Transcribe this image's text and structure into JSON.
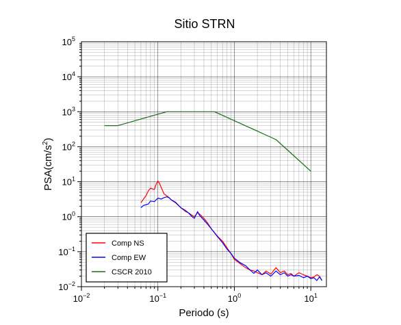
{
  "chart_data": {
    "type": "line",
    "title": "Sitio STRN",
    "xlabel": "Periodo (s)",
    "ylabel": {
      "base": "PSA(cm/s",
      "sup": "2",
      "tail": ")"
    },
    "xscale": "log",
    "yscale": "log",
    "xlim": [
      0.01,
      16
    ],
    "ylim": [
      0.01,
      100000
    ],
    "grid": true,
    "legend_position": "bottom-left",
    "x_ticks": [
      {
        "value": 0.01,
        "base": "10",
        "exp": "−2"
      },
      {
        "value": 0.1,
        "base": "10",
        "exp": "−1"
      },
      {
        "value": 1,
        "base": "10",
        "exp": "0"
      },
      {
        "value": 10,
        "base": "10",
        "exp": "1"
      }
    ],
    "y_ticks": [
      {
        "value": 0.01,
        "base": "10",
        "exp": "−2"
      },
      {
        "value": 0.1,
        "base": "10",
        "exp": "−1"
      },
      {
        "value": 1,
        "base": "10",
        "exp": "0"
      },
      {
        "value": 10,
        "base": "10",
        "exp": "1"
      },
      {
        "value": 100,
        "base": "10",
        "exp": "2"
      },
      {
        "value": 1000,
        "base": "10",
        "exp": "3"
      },
      {
        "value": 10000,
        "base": "10",
        "exp": "4"
      },
      {
        "value": 100000,
        "base": "10",
        "exp": "5"
      }
    ],
    "series": [
      {
        "name": "Comp NS",
        "color": "#ff0000",
        "x": [
          0.06,
          0.065,
          0.07,
          0.075,
          0.08,
          0.09,
          0.095,
          0.1,
          0.105,
          0.11,
          0.12,
          0.13,
          0.14,
          0.15,
          0.17,
          0.2,
          0.23,
          0.25,
          0.28,
          0.3,
          0.33,
          0.35,
          0.4,
          0.45,
          0.5,
          0.6,
          0.7,
          0.8,
          0.9,
          1.0,
          1.2,
          1.4,
          1.6,
          1.8,
          2.0,
          2.3,
          2.6,
          3.0,
          3.5,
          4.0,
          4.5,
          5.0,
          5.5,
          6.0,
          7.0,
          8.0,
          9.0,
          10.0,
          11.0,
          12.0,
          13.0,
          14.0
        ],
        "y": [
          2.5,
          3.2,
          4.0,
          5.5,
          6.5,
          6.0,
          8.5,
          10.5,
          9.0,
          7.0,
          4.5,
          4.0,
          3.5,
          3.0,
          2.5,
          1.8,
          1.4,
          1.3,
          1.1,
          1.0,
          1.3,
          1.2,
          0.9,
          0.65,
          0.45,
          0.28,
          0.2,
          0.13,
          0.09,
          0.06,
          0.045,
          0.035,
          0.03,
          0.028,
          0.025,
          0.022,
          0.028,
          0.023,
          0.035,
          0.025,
          0.028,
          0.022,
          0.024,
          0.02,
          0.025,
          0.022,
          0.02,
          0.018,
          0.019,
          0.022,
          0.02,
          0.015
        ]
      },
      {
        "name": "Comp EW",
        "color": "#0000ff",
        "x": [
          0.06,
          0.065,
          0.07,
          0.075,
          0.08,
          0.09,
          0.1,
          0.11,
          0.12,
          0.13,
          0.14,
          0.15,
          0.17,
          0.2,
          0.23,
          0.25,
          0.28,
          0.3,
          0.33,
          0.35,
          0.4,
          0.45,
          0.5,
          0.6,
          0.7,
          0.8,
          0.9,
          1.0,
          1.2,
          1.4,
          1.6,
          1.8,
          2.0,
          2.3,
          2.6,
          3.0,
          3.5,
          4.0,
          4.5,
          5.0,
          5.5,
          6.0,
          7.0,
          8.0,
          9.0,
          10.0,
          11.0,
          12.0,
          13.0,
          14.0
        ],
        "y": [
          1.8,
          2.1,
          2.2,
          2.3,
          2.8,
          2.7,
          3.4,
          3.2,
          3.5,
          3.7,
          3.5,
          3.0,
          2.6,
          1.8,
          1.5,
          1.3,
          1.0,
          0.9,
          1.4,
          1.1,
          0.8,
          0.6,
          0.45,
          0.27,
          0.18,
          0.12,
          0.09,
          0.065,
          0.048,
          0.04,
          0.03,
          0.024,
          0.03,
          0.022,
          0.025,
          0.02,
          0.028,
          0.022,
          0.025,
          0.02,
          0.022,
          0.02,
          0.021,
          0.018,
          0.02,
          0.017,
          0.018,
          0.015,
          0.019,
          0.015
        ]
      },
      {
        "name": "CSCR 2010",
        "color": "#1a6b1a",
        "x": [
          0.02,
          0.03,
          0.13,
          0.55,
          3.5,
          10.0
        ],
        "y": [
          400,
          400,
          1000,
          1000,
          160,
          20
        ]
      }
    ]
  }
}
